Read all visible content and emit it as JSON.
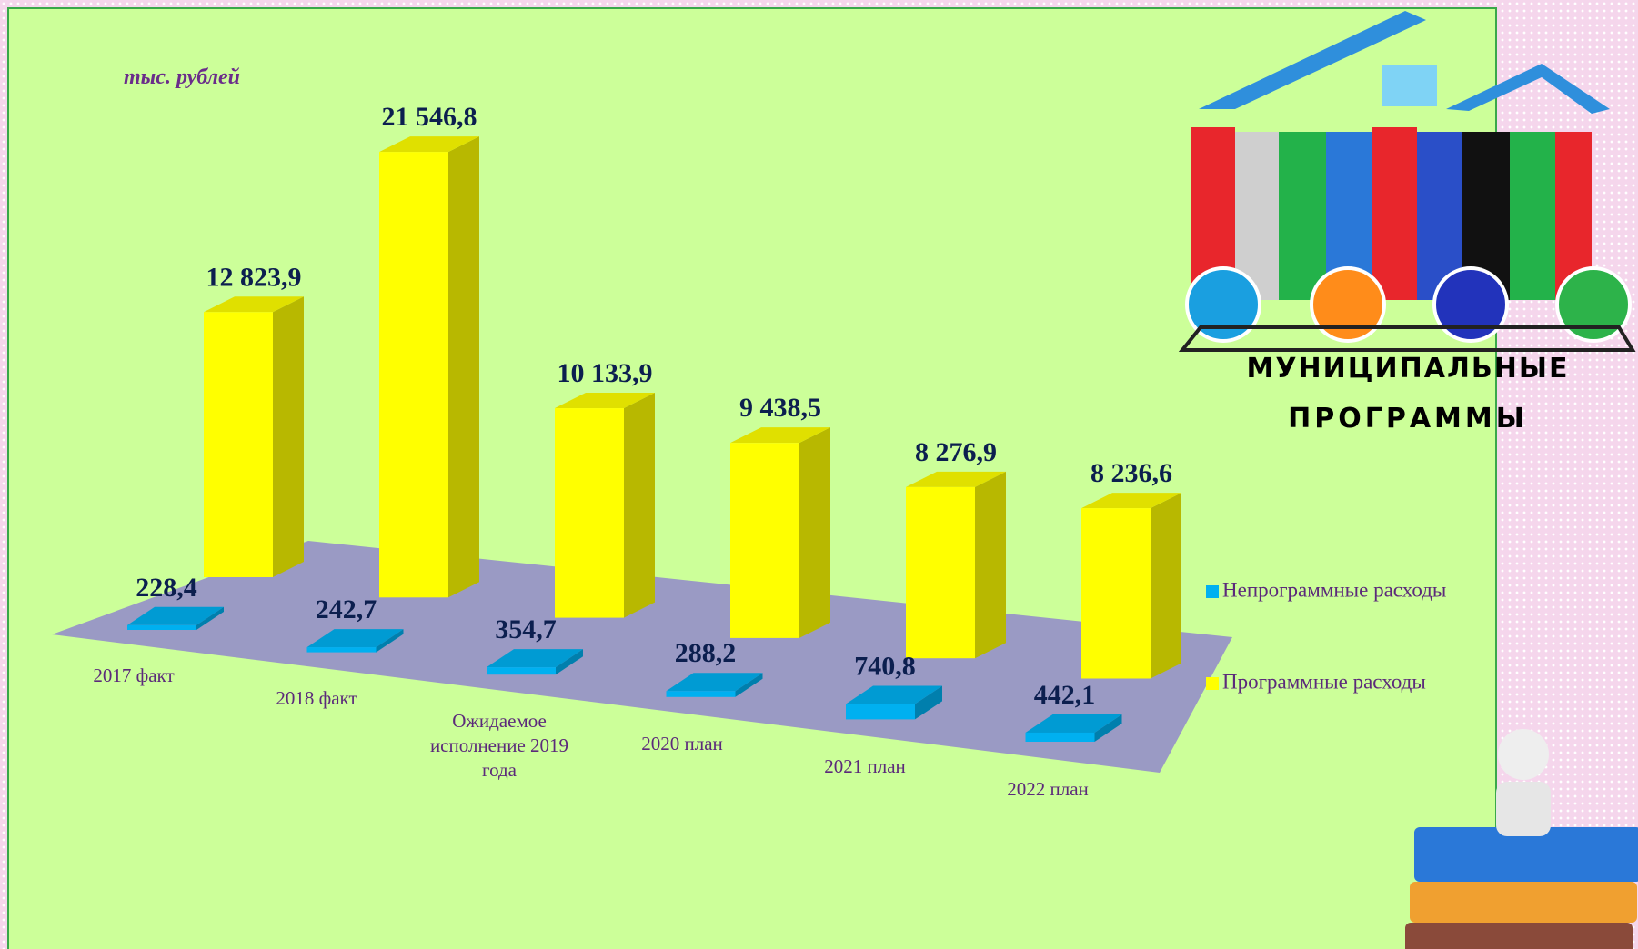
{
  "chart_data": {
    "type": "bar3d",
    "unit_label": "тыс. рублей",
    "categories": [
      "2017 факт",
      "2018 факт",
      "Ожидаемое исполнение 2019 года",
      "2020 план",
      "2021 план",
      "2022 план"
    ],
    "series": [
      {
        "name": "Непрограммные расходы",
        "color": "#00b0f0",
        "values": [
          228.4,
          242.7,
          354.7,
          288.2,
          740.8,
          442.1
        ],
        "value_labels": [
          "228,4",
          "242,7",
          "354,7",
          "288,2",
          "740,8",
          "442,1"
        ]
      },
      {
        "name": "Программные расходы",
        "color": "#ffff00",
        "values": [
          12823.9,
          21546.8,
          10133.9,
          9438.5,
          8276.9,
          8236.6
        ],
        "value_labels": [
          "12 823,9",
          "21 546,8",
          "10 133,9",
          "9 438,5",
          "8 276,9",
          "8 236,6"
        ]
      }
    ],
    "legend": "right",
    "logo_text": [
      "МУНИЦИПАЛЬНЫЕ",
      "ПРОГРАММЫ"
    ]
  }
}
